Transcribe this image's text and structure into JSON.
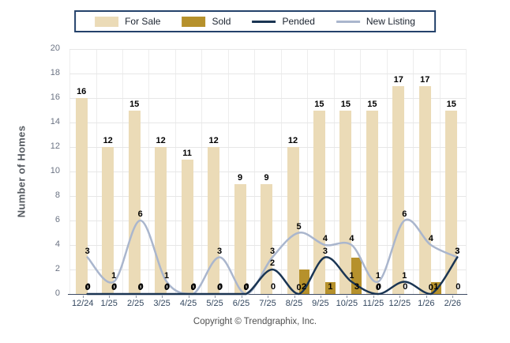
{
  "chart_data": {
    "type": "bar",
    "categories": [
      "12/24",
      "1/25",
      "2/25",
      "3/25",
      "4/25",
      "5/25",
      "6/25",
      "7/25",
      "8/25",
      "9/25",
      "10/25",
      "11/25",
      "12/25",
      "1/26",
      "2/26"
    ],
    "series": [
      {
        "name": "For Sale",
        "type": "bar",
        "color": "#EBDBB7",
        "values": [
          16,
          12,
          15,
          12,
          11,
          12,
          9,
          9,
          12,
          15,
          15,
          15,
          17,
          17,
          15
        ]
      },
      {
        "name": "Sold",
        "type": "bar",
        "color": "#B6912C",
        "values": [
          0,
          0,
          0,
          0,
          0,
          0,
          0,
          0,
          2,
          1,
          3,
          0,
          0,
          1,
          0
        ]
      },
      {
        "name": "Pended",
        "type": "line",
        "color": "#1A3553",
        "values": [
          0,
          0,
          0,
          0,
          0,
          0,
          0,
          2,
          0,
          3,
          1,
          0,
          1,
          0,
          3
        ]
      },
      {
        "name": "New Listing",
        "type": "line",
        "color": "#AAB6CD",
        "values": [
          3,
          1,
          6,
          1,
          0,
          3,
          0,
          3,
          5,
          4,
          4,
          1,
          6,
          4,
          3
        ]
      }
    ],
    "ylabel": "Number of Homes",
    "xlabel": "",
    "ylim": [
      0,
      20
    ],
    "yticks": [
      0,
      2,
      4,
      6,
      8,
      10,
      12,
      14,
      16,
      18,
      20
    ],
    "grid": true,
    "legend_position": "top"
  },
  "footer": {
    "copyright": "Copyright © Trendgraphix, Inc."
  },
  "colors": {
    "axis_line": "#3D4A63",
    "horizontal_gridline": "#E7E7E7",
    "vertical_gridline": "#EDEDED",
    "legend_border": "#24426B",
    "value_label": "#000000",
    "y_tick_label": "#6B7383",
    "x_tick_label": "#33475F"
  }
}
